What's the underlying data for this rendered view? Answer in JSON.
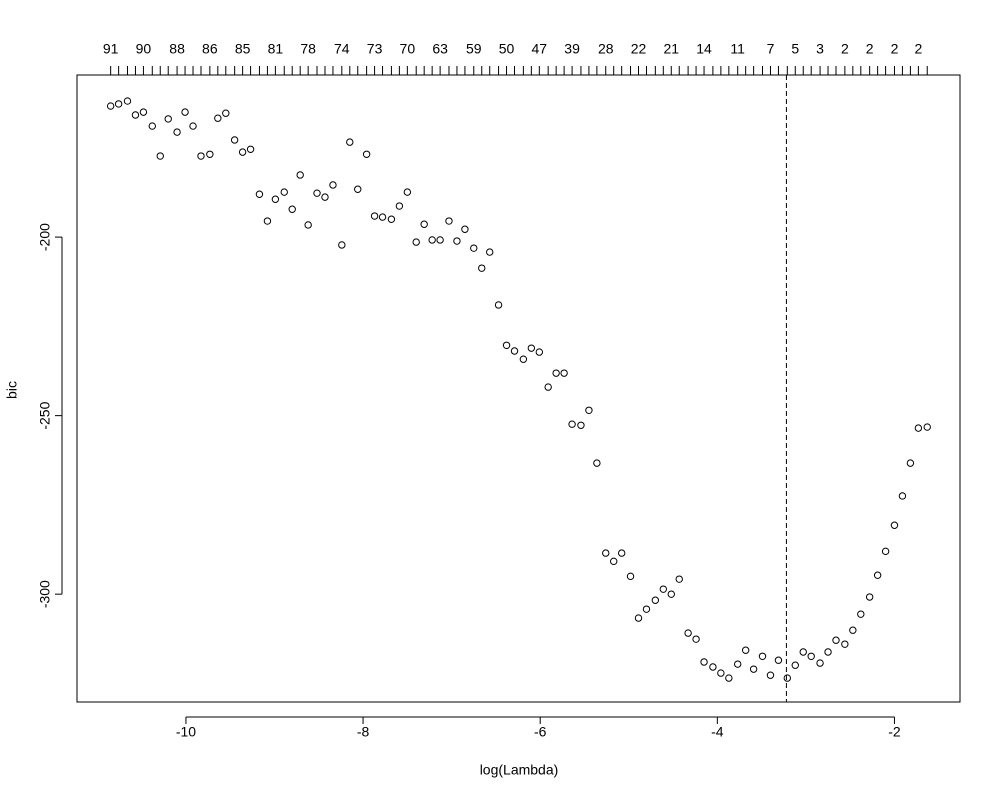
{
  "chart_data": {
    "type": "scatter",
    "xlabel": "log(Lambda)",
    "ylabel": "bic",
    "x": [
      -10.85,
      -10.76,
      -10.66,
      -10.57,
      -10.48,
      -10.38,
      -10.29,
      -10.2,
      -10.1,
      -10.01,
      -9.92,
      -9.83,
      -9.73,
      -9.64,
      -9.55,
      -9.45,
      -9.36,
      -9.27,
      -9.17,
      -9.08,
      -8.99,
      -8.89,
      -8.8,
      -8.71,
      -8.62,
      -8.52,
      -8.43,
      -8.34,
      -8.24,
      -8.15,
      -8.06,
      -7.96,
      -7.87,
      -7.78,
      -7.68,
      -7.59,
      -7.5,
      -7.4,
      -7.31,
      -7.22,
      -7.13,
      -7.03,
      -6.94,
      -6.85,
      -6.75,
      -6.66,
      -6.57,
      -6.47,
      -6.38,
      -6.29,
      -6.19,
      -6.1,
      -6.01,
      -5.91,
      -5.82,
      -5.73,
      -5.64,
      -5.54,
      -5.45,
      -5.36,
      -5.26,
      -5.17,
      -5.08,
      -4.98,
      -4.89,
      -4.8,
      -4.7,
      -4.61,
      -4.52,
      -4.43,
      -4.33,
      -4.24,
      -4.15,
      -4.05,
      -3.96,
      -3.87,
      -3.77,
      -3.68,
      -3.59,
      -3.49,
      -3.4,
      -3.31,
      -3.21,
      -3.12,
      -3.03,
      -2.94,
      -2.84,
      -2.75,
      -2.66,
      -2.56,
      -2.47,
      -2.38,
      -2.28,
      -2.19,
      -2.1,
      -2.0,
      -1.91,
      -1.82,
      -1.73,
      -1.63
    ],
    "values": [
      -163.3,
      -162.7,
      -161.9,
      -165.8,
      -165.0,
      -168.9,
      -177.3,
      -166.9,
      -170.6,
      -165.0,
      -168.9,
      -177.3,
      -176.8,
      -166.7,
      -165.3,
      -172.8,
      -176.2,
      -175.4,
      -188.0,
      -195.5,
      -189.4,
      -187.4,
      -192.2,
      -182.6,
      -196.6,
      -187.7,
      -188.8,
      -185.4,
      -202.2,
      -173.4,
      -186.6,
      -176.8,
      -194.1,
      -194.4,
      -195.0,
      -191.3,
      -187.4,
      -201.4,
      -196.4,
      -200.8,
      -200.8,
      -195.5,
      -201.1,
      -197.8,
      -203.1,
      -208.7,
      -204.2,
      -219.0,
      -230.3,
      -231.9,
      -234.2,
      -231.1,
      -232.2,
      -242.0,
      -238.1,
      -238.1,
      -252.4,
      -252.7,
      -248.5,
      -263.3,
      -288.5,
      -290.8,
      -288.5,
      -295.0,
      -306.7,
      -304.2,
      -301.7,
      -298.6,
      -300.0,
      -295.8,
      -310.9,
      -312.6,
      -319.0,
      -320.4,
      -322.1,
      -323.5,
      -319.6,
      -315.7,
      -321.0,
      -317.4,
      -322.7,
      -318.5,
      -323.5,
      -319.9,
      -316.2,
      -317.4,
      -319.3,
      -316.2,
      -312.9,
      -314.0,
      -310.1,
      -305.6,
      -300.8,
      -294.7,
      -288.0,
      -280.7,
      -272.5,
      -263.3,
      -253.5,
      -253.2
    ],
    "color": "#000000",
    "xlim": [
      -11.23,
      -1.26
    ],
    "ylim": [
      -330.2,
      -154.6
    ],
    "xticks": [
      -10,
      -8,
      -6,
      -4,
      -2
    ],
    "yticks": [
      -300,
      -250,
      -200
    ],
    "x2ticks": [
      {
        "value": -10.85,
        "label": "91"
      },
      {
        "value": -10.48,
        "label": "90"
      },
      {
        "value": -10.1,
        "label": "88"
      },
      {
        "value": -9.73,
        "label": "86"
      },
      {
        "value": -9.36,
        "label": "85"
      },
      {
        "value": -8.99,
        "label": "81"
      },
      {
        "value": -8.62,
        "label": "78"
      },
      {
        "value": -8.24,
        "label": "74"
      },
      {
        "value": -7.87,
        "label": "73"
      },
      {
        "value": -7.5,
        "label": "70"
      },
      {
        "value": -7.13,
        "label": "63"
      },
      {
        "value": -6.75,
        "label": "59"
      },
      {
        "value": -6.38,
        "label": "50"
      },
      {
        "value": -6.01,
        "label": "47"
      },
      {
        "value": -5.64,
        "label": "39"
      },
      {
        "value": -5.26,
        "label": "28"
      },
      {
        "value": -4.89,
        "label": "22"
      },
      {
        "value": -4.52,
        "label": "21"
      },
      {
        "value": -4.15,
        "label": "14"
      },
      {
        "value": -3.77,
        "label": "11"
      },
      {
        "value": -3.4,
        "label": "7"
      },
      {
        "value": -3.12,
        "label": "5"
      },
      {
        "value": -2.84,
        "label": "3"
      },
      {
        "value": -2.56,
        "label": "2"
      },
      {
        "value": -2.28,
        "label": "2"
      },
      {
        "value": -2.0,
        "label": "2"
      },
      {
        "value": -1.73,
        "label": "2"
      }
    ],
    "vline": -3.22
  }
}
